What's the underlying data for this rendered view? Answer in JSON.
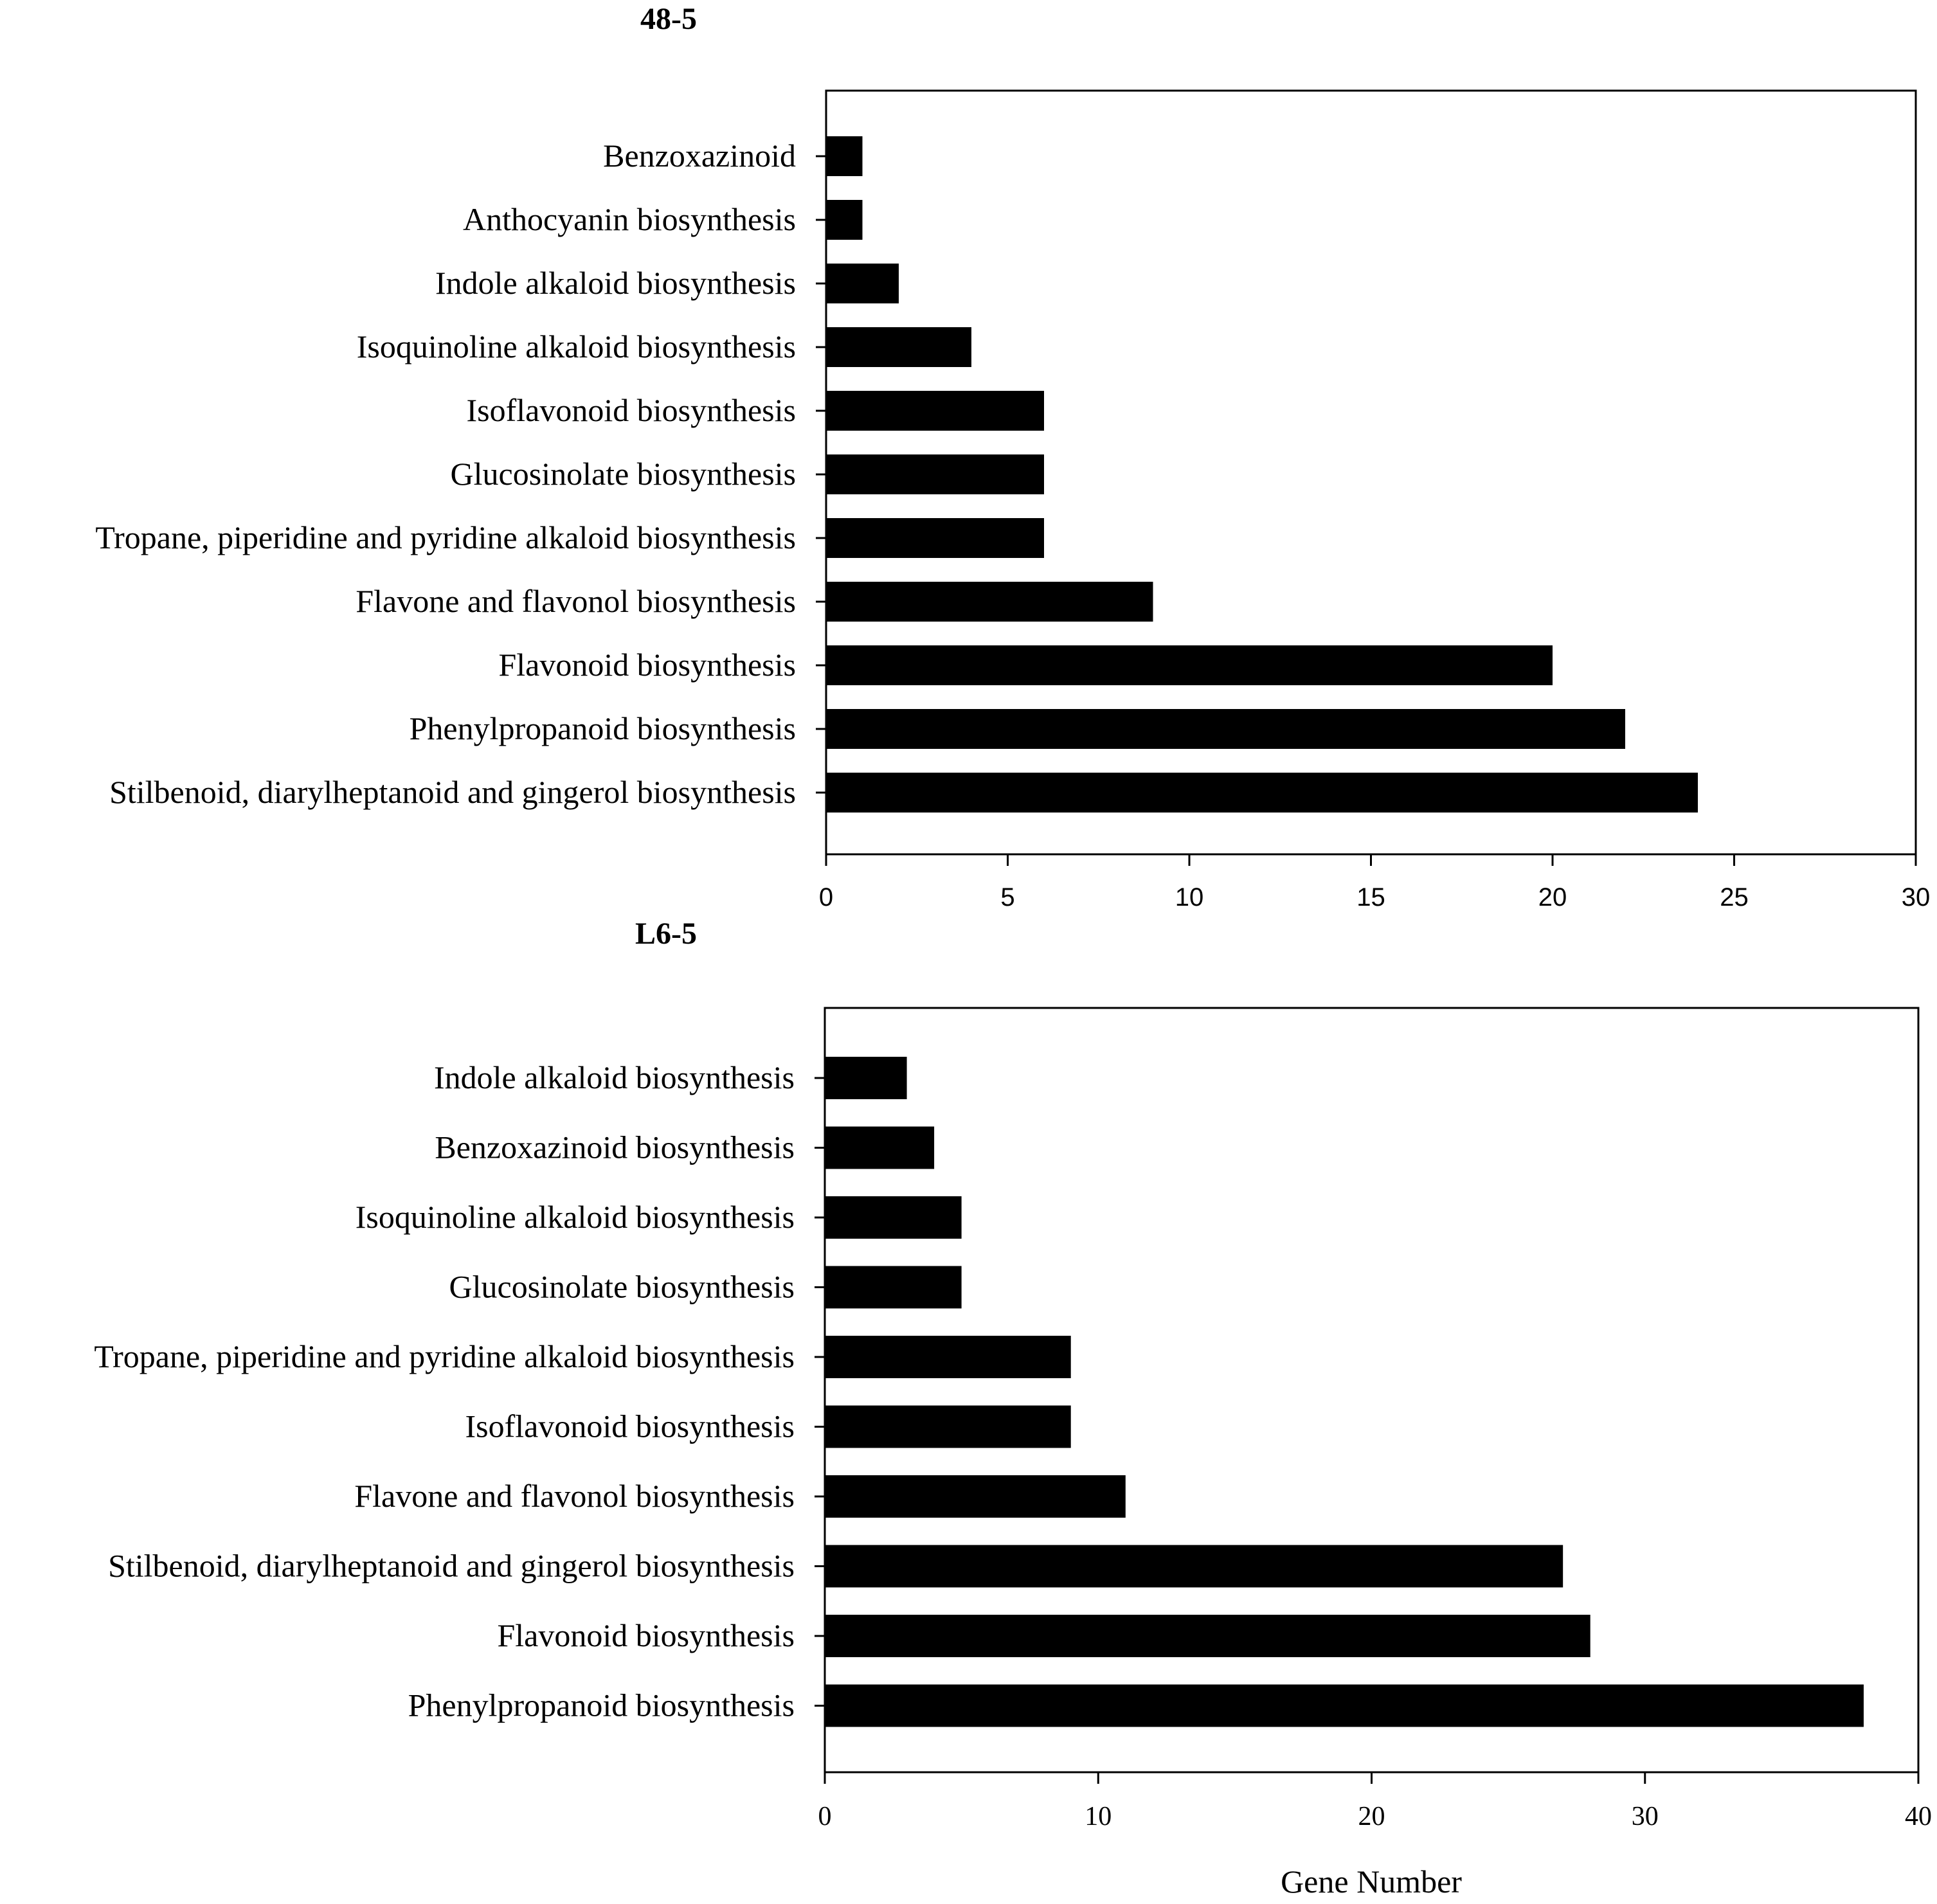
{
  "chart_data": [
    {
      "type": "bar",
      "orientation": "horizontal",
      "title": "48-5",
      "xlabel": "",
      "ylabel": "",
      "xlim": [
        0,
        30
      ],
      "xticks": [
        0,
        5,
        10,
        15,
        20,
        25,
        30
      ],
      "grid": false,
      "bar_color": "#000000",
      "categories": [
        "Benzoxazinoid",
        "Anthocyanin biosynthesis",
        "Indole alkaloid biosynthesis",
        "Isoquinoline alkaloid biosynthesis",
        "Isoflavonoid biosynthesis",
        "Glucosinolate biosynthesis",
        "Tropane, piperidine and pyridine alkaloid biosynthesis",
        "Flavone and flavonol biosynthesis",
        "Flavonoid biosynthesis",
        "Phenylpropanoid biosynthesis",
        "Stilbenoid, diarylheptanoid and gingerol biosynthesis"
      ],
      "values": [
        1,
        1,
        2,
        4,
        6,
        6,
        6,
        9,
        20,
        22,
        24
      ]
    },
    {
      "type": "bar",
      "orientation": "horizontal",
      "title": "L6-5",
      "xlabel": "Gene Number",
      "ylabel": "",
      "xlim": [
        0,
        40
      ],
      "xticks": [
        0,
        10,
        20,
        30,
        40
      ],
      "grid": false,
      "bar_color": "#000000",
      "categories": [
        "Indole alkaloid biosynthesis",
        "Benzoxazinoid biosynthesis",
        "Isoquinoline alkaloid biosynthesis",
        "Glucosinolate biosynthesis",
        "Tropane, piperidine and pyridine alkaloid biosynthesis",
        "Isoflavonoid biosynthesis",
        "Flavone and flavonol biosynthesis",
        "Stilbenoid, diarylheptanoid and gingerol biosynthesis",
        "Flavonoid biosynthesis",
        "Phenylpropanoid biosynthesis"
      ],
      "values": [
        3,
        4,
        5,
        5,
        9,
        9,
        11,
        27,
        28,
        38
      ]
    }
  ]
}
